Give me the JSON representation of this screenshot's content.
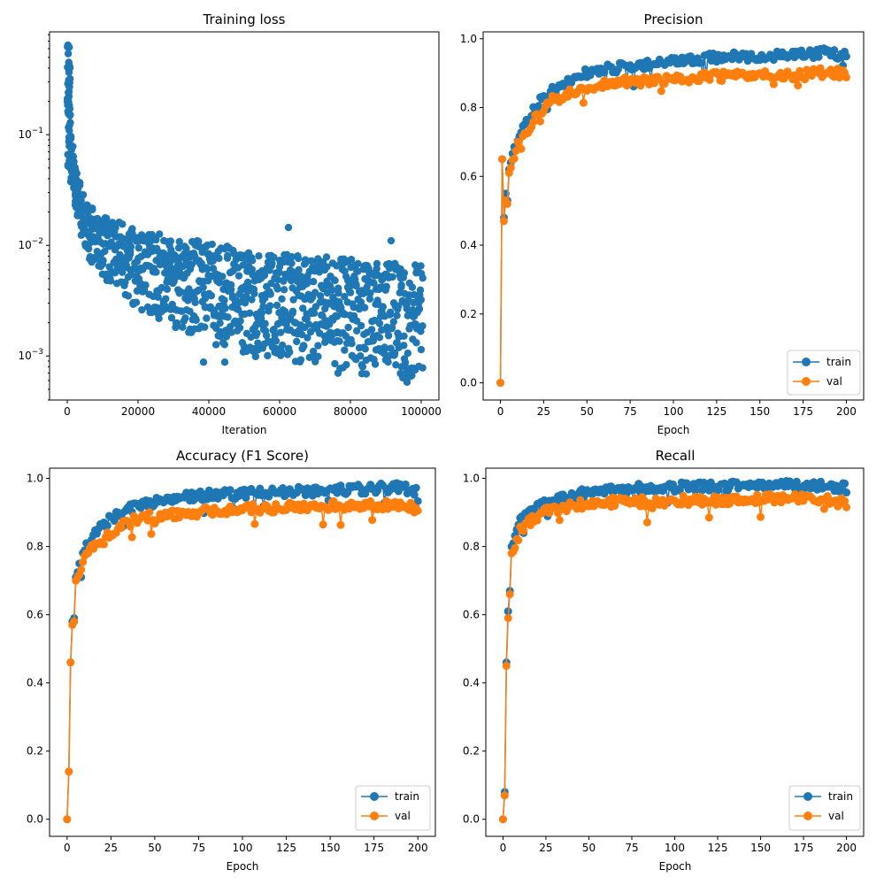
{
  "colors": {
    "train": "#1f77b4",
    "val": "#ff7f0e"
  },
  "chart_data": [
    {
      "id": "loss",
      "type": "scatter",
      "title": "Training loss",
      "xlabel": "Iteration",
      "ylabel": "",
      "yscale": "log",
      "xlim": [
        -5000,
        105000
      ],
      "ylim": [
        0.0004,
        0.85
      ],
      "xticks": [
        0,
        20000,
        40000,
        60000,
        80000,
        100000
      ],
      "xtick_labels": [
        "0",
        "20000",
        "40000",
        "60000",
        "80000",
        "100000"
      ],
      "yticks": [
        0.001,
        0.01,
        0.1
      ],
      "ytick_labels": [
        "10^-3",
        "10^-2",
        "10^-1"
      ],
      "grid": false,
      "legend": null,
      "series": [
        {
          "color": "#1f77b4",
          "upper_envelope": [
            [
              0,
              0.65
            ],
            [
              500,
              0.3
            ],
            [
              1000,
              0.1
            ],
            [
              2000,
              0.05
            ],
            [
              5000,
              0.025
            ],
            [
              10000,
              0.018
            ],
            [
              20000,
              0.014
            ],
            [
              30000,
              0.012
            ],
            [
              40000,
              0.011
            ],
            [
              50000,
              0.009
            ],
            [
              60000,
              0.0085
            ],
            [
              70000,
              0.008
            ],
            [
              80000,
              0.0075
            ],
            [
              90000,
              0.007
            ],
            [
              100000,
              0.007
            ]
          ],
          "lower_envelope": [
            [
              0,
              0.05
            ],
            [
              2000,
              0.02
            ],
            [
              5000,
              0.008
            ],
            [
              10000,
              0.005
            ],
            [
              20000,
              0.0025
            ],
            [
              30000,
              0.0018
            ],
            [
              40000,
              0.0013
            ],
            [
              50000,
              0.001
            ],
            [
              60000,
              0.0009
            ],
            [
              70000,
              0.0008
            ],
            [
              80000,
              0.0007
            ],
            [
              90000,
              0.00065
            ],
            [
              100000,
              0.0006
            ]
          ],
          "outliers": [
            [
              62500,
              0.0145
            ],
            [
              91500,
              0.011
            ],
            [
              38500,
              0.00088
            ],
            [
              44500,
              0.00088
            ],
            [
              76500,
              0.0007
            ],
            [
              96000,
              0.00058
            ]
          ]
        }
      ]
    },
    {
      "id": "precision",
      "type": "line",
      "title": "Precision",
      "xlabel": "Epoch",
      "ylabel": "",
      "xlim": [
        -10,
        210
      ],
      "ylim": [
        -0.05,
        1.02
      ],
      "xticks": [
        0,
        25,
        50,
        75,
        100,
        125,
        150,
        175,
        200
      ],
      "xtick_labels": [
        "0",
        "25",
        "50",
        "75",
        "100",
        "125",
        "150",
        "175",
        "200"
      ],
      "yticks": [
        0,
        0.2,
        0.4,
        0.6,
        0.8,
        1.0
      ],
      "ytick_labels": [
        "0.0",
        "0.2",
        "0.4",
        "0.6",
        "0.8",
        "1.0"
      ],
      "grid": false,
      "legend": "lower-right",
      "series": [
        {
          "name": "train",
          "color": "#1f77b4",
          "x": [
            0,
            1,
            2,
            3,
            4,
            5,
            7,
            10,
            15,
            20,
            25,
            30,
            40,
            50,
            60,
            75,
            100,
            125,
            150,
            175,
            190,
            200
          ],
          "y": [
            0.0,
            0.65,
            0.48,
            0.55,
            0.53,
            0.62,
            0.66,
            0.71,
            0.76,
            0.8,
            0.83,
            0.85,
            0.88,
            0.9,
            0.91,
            0.92,
            0.935,
            0.945,
            0.95,
            0.955,
            0.96,
            0.95
          ]
        },
        {
          "name": "val",
          "color": "#ff7f0e",
          "x": [
            0,
            1,
            2,
            3,
            4,
            5,
            7,
            10,
            15,
            20,
            25,
            30,
            40,
            50,
            60,
            75,
            100,
            125,
            150,
            175,
            190,
            200
          ],
          "y": [
            0.0,
            0.65,
            0.47,
            0.53,
            0.52,
            0.61,
            0.64,
            0.69,
            0.73,
            0.77,
            0.8,
            0.82,
            0.84,
            0.86,
            0.87,
            0.875,
            0.885,
            0.89,
            0.895,
            0.895,
            0.905,
            0.895
          ]
        }
      ]
    },
    {
      "id": "accuracy",
      "type": "line",
      "title": "Accuracy (F1 Score)",
      "xlabel": "Epoch",
      "ylabel": "",
      "xlim": [
        -10,
        210
      ],
      "ylim": [
        -0.05,
        1.03
      ],
      "xticks": [
        0,
        25,
        50,
        75,
        100,
        125,
        150,
        175,
        200
      ],
      "xtick_labels": [
        "0",
        "25",
        "50",
        "75",
        "100",
        "125",
        "150",
        "175",
        "200"
      ],
      "yticks": [
        0,
        0.2,
        0.4,
        0.6,
        0.8,
        1.0
      ],
      "ytick_labels": [
        "0.0",
        "0.2",
        "0.4",
        "0.6",
        "0.8",
        "1.0"
      ],
      "grid": false,
      "legend": "lower-right",
      "series": [
        {
          "name": "train",
          "color": "#1f77b4",
          "x": [
            0,
            1,
            2,
            3,
            4,
            5,
            7,
            10,
            15,
            20,
            25,
            30,
            40,
            50,
            60,
            75,
            100,
            125,
            150,
            175,
            190,
            200
          ],
          "y": [
            0.0,
            0.14,
            0.46,
            0.58,
            0.59,
            0.71,
            0.74,
            0.79,
            0.83,
            0.86,
            0.88,
            0.9,
            0.92,
            0.93,
            0.94,
            0.95,
            0.955,
            0.96,
            0.965,
            0.97,
            0.975,
            0.96
          ]
        },
        {
          "name": "val",
          "color": "#ff7f0e",
          "x": [
            0,
            1,
            2,
            3,
            4,
            5,
            7,
            10,
            15,
            20,
            25,
            30,
            40,
            50,
            60,
            75,
            100,
            125,
            150,
            175,
            190,
            200
          ],
          "y": [
            0.0,
            0.14,
            0.46,
            0.57,
            0.58,
            0.7,
            0.72,
            0.76,
            0.8,
            0.82,
            0.84,
            0.86,
            0.88,
            0.89,
            0.895,
            0.9,
            0.91,
            0.915,
            0.92,
            0.92,
            0.925,
            0.91
          ]
        }
      ]
    },
    {
      "id": "recall",
      "type": "line",
      "title": "Recall",
      "xlabel": "Epoch",
      "ylabel": "",
      "xlim": [
        -10,
        210
      ],
      "ylim": [
        -0.05,
        1.03
      ],
      "xticks": [
        0,
        25,
        50,
        75,
        100,
        125,
        150,
        175,
        200
      ],
      "xtick_labels": [
        "0",
        "25",
        "50",
        "75",
        "100",
        "125",
        "150",
        "175",
        "200"
      ],
      "yticks": [
        0,
        0.2,
        0.4,
        0.6,
        0.8,
        1.0
      ],
      "ytick_labels": [
        "0.0",
        "0.2",
        "0.4",
        "0.6",
        "0.8",
        "1.0"
      ],
      "grid": false,
      "legend": "lower-right",
      "series": [
        {
          "name": "train",
          "color": "#1f77b4",
          "x": [
            0,
            1,
            2,
            3,
            4,
            5,
            7,
            10,
            15,
            20,
            25,
            30,
            40,
            50,
            60,
            75,
            100,
            125,
            150,
            175,
            190,
            200
          ],
          "y": [
            0.0,
            0.08,
            0.46,
            0.61,
            0.67,
            0.8,
            0.82,
            0.88,
            0.9,
            0.92,
            0.93,
            0.94,
            0.95,
            0.96,
            0.965,
            0.97,
            0.975,
            0.975,
            0.98,
            0.98,
            0.98,
            0.97
          ]
        },
        {
          "name": "val",
          "color": "#ff7f0e",
          "x": [
            0,
            1,
            2,
            3,
            4,
            5,
            7,
            10,
            15,
            20,
            25,
            30,
            40,
            50,
            60,
            75,
            100,
            125,
            150,
            175,
            190,
            200
          ],
          "y": [
            0.0,
            0.07,
            0.45,
            0.59,
            0.66,
            0.78,
            0.79,
            0.85,
            0.87,
            0.89,
            0.9,
            0.91,
            0.92,
            0.925,
            0.93,
            0.93,
            0.935,
            0.935,
            0.94,
            0.94,
            0.935,
            0.925
          ]
        }
      ]
    }
  ]
}
